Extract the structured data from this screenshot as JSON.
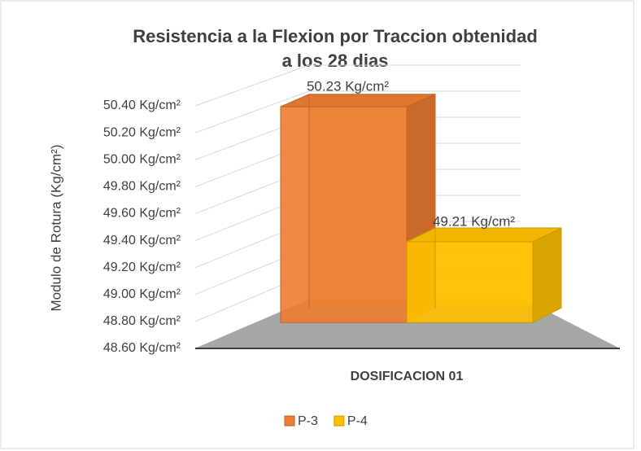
{
  "chart_data": {
    "type": "bar3d",
    "title": [
      "Resistencia a la Flexion por Traccion obtenidad",
      "a los 28 dias"
    ],
    "y_label": "Modulo de Rotura (Kg/cm²)",
    "categories": [
      "DOSIFICACION 01"
    ],
    "series": [
      {
        "name": "P-3",
        "color": "#ED7D31",
        "values": [
          50.23
        ],
        "value_labels": [
          "50.23 Kg/cm²"
        ]
      },
      {
        "name": "P-4",
        "color": "#FFC000",
        "values": [
          49.21
        ],
        "value_labels": [
          "49.21 Kg/cm²"
        ]
      }
    ],
    "ylim": [
      48.6,
      50.4
    ],
    "yticks": [
      {
        "value": 48.6,
        "label": "48.60 Kg/cm²"
      },
      {
        "value": 48.8,
        "label": "48.80 Kg/cm²"
      },
      {
        "value": 49.0,
        "label": "49.00 Kg/cm²"
      },
      {
        "value": 49.2,
        "label": "49.20 Kg/cm²"
      },
      {
        "value": 49.4,
        "label": "49.40 Kg/cm²"
      },
      {
        "value": 49.6,
        "label": "49.60 Kg/cm²"
      },
      {
        "value": 49.8,
        "label": "49.80 Kg/cm²"
      },
      {
        "value": 50.0,
        "label": "50.00 Kg/cm²"
      },
      {
        "value": 50.2,
        "label": "50.20 Kg/cm²"
      },
      {
        "value": 50.4,
        "label": "50.40 Kg/cm²"
      }
    ],
    "grid": true,
    "legend": "bottom"
  }
}
